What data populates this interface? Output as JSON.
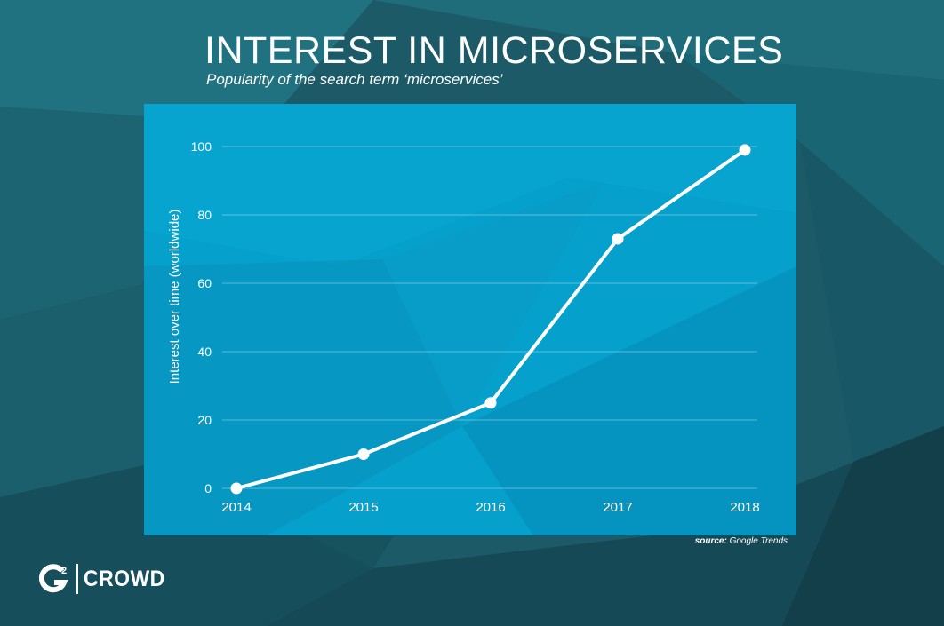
{
  "header": {
    "title": "INTEREST IN MICROSERVICES",
    "subtitle": "Popularity of the search term ‘microservices’"
  },
  "footer": {
    "source_label": "source:",
    "source_value": "Google Trends",
    "logo_text": "CROWD",
    "logo_g": "G",
    "logo_superscript": "2"
  },
  "colors": {
    "background": "#1f5f6e",
    "panel": "#05a0cc",
    "line": "#ffffff",
    "text": "#ffffff"
  },
  "chart_data": {
    "type": "line",
    "title": "INTEREST IN MICROSERVICES",
    "subtitle": "Popularity of the search term ‘microservices’",
    "xlabel": "",
    "ylabel": "Interest over time (worldwide)",
    "categories": [
      "2014",
      "2015",
      "2016",
      "2017",
      "2018"
    ],
    "values": [
      0,
      10,
      25,
      73,
      99
    ],
    "ylim": [
      0,
      100
    ],
    "yticks": [
      "0",
      "20",
      "40",
      "60",
      "80",
      "100"
    ],
    "grid": true,
    "legend": "none"
  }
}
